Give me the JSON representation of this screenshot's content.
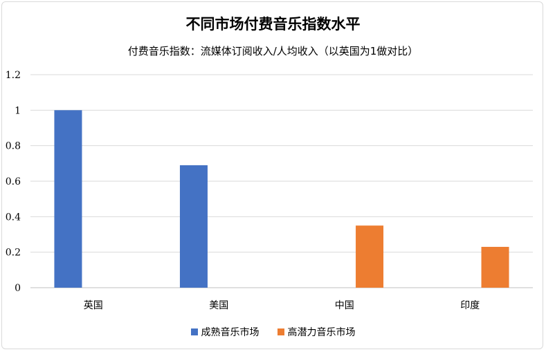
{
  "chart_data": {
    "type": "bar",
    "title": "不同市场付费音乐指数水平",
    "subtitle": "付费音乐指数：流媒体订阅收入/人均收入（以英国为1做对比）",
    "categories": [
      "英国",
      "美国",
      "中国",
      "印度"
    ],
    "series": [
      {
        "name": "成熟音乐市场",
        "values": [
          1.0,
          0.69,
          null,
          null
        ],
        "color": "#4472C4"
      },
      {
        "name": "高潜力音乐市场",
        "values": [
          null,
          null,
          0.35,
          0.23
        ],
        "color": "#ED7D31"
      }
    ],
    "ylim": [
      0,
      1.2
    ],
    "yticks": [
      0,
      0.2,
      0.4,
      0.6,
      0.8,
      1,
      1.2
    ],
    "ytick_labels": [
      "0",
      "0.2",
      "0.4",
      "0.6",
      "0.8",
      "1",
      "1.2"
    ],
    "grid": true,
    "legend_position": "bottom",
    "xlabel": "",
    "ylabel": ""
  }
}
